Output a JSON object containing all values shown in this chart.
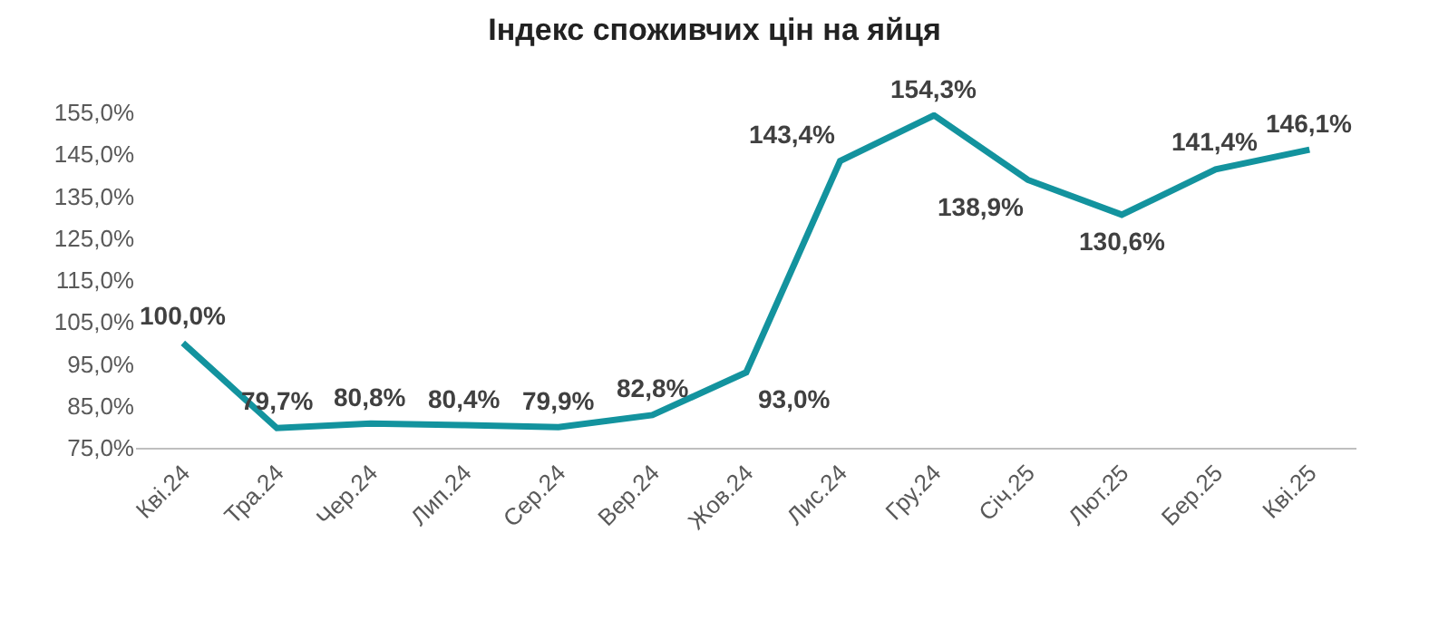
{
  "chart_data": {
    "type": "line",
    "title": "Індекс споживчих цін на яйця",
    "categories": [
      "Кві.24",
      "Тра.24",
      "Чер.24",
      "Лип.24",
      "Сер.24",
      "Вер.24",
      "Жов.24",
      "Лис.24",
      "Гру.24",
      "Січ.25",
      "Лют.25",
      "Бер.25",
      "Кві.25"
    ],
    "series": [
      {
        "color": "#13939e",
        "values": [
          100.0,
          79.7,
          80.8,
          80.4,
          79.9,
          82.8,
          93.0,
          143.4,
          154.3,
          138.9,
          130.6,
          141.4,
          146.1
        ]
      }
    ],
    "ylim": [
      75,
      155
    ],
    "yticks": [
      {
        "value": 75,
        "label": "75,0%"
      },
      {
        "value": 85,
        "label": "85,0%"
      },
      {
        "value": 95,
        "label": "95,0%"
      },
      {
        "value": 105,
        "label": "105,0%"
      },
      {
        "value": 115,
        "label": "115,0%"
      },
      {
        "value": 125,
        "label": "125,0%"
      },
      {
        "value": 135,
        "label": "135,0%"
      },
      {
        "value": 145,
        "label": "145,0%"
      },
      {
        "value": 155,
        "label": "155,0%"
      }
    ],
    "value_labels": [
      "100,0%",
      "79,7%",
      "80,8%",
      "80,4%",
      "79,9%",
      "82,8%",
      "93,0%",
      "143,4%",
      "154,3%",
      "138,9%",
      "130,6%",
      "141,4%",
      "146,1%"
    ],
    "legend": false,
    "marker": "none",
    "line_style": "solid"
  }
}
